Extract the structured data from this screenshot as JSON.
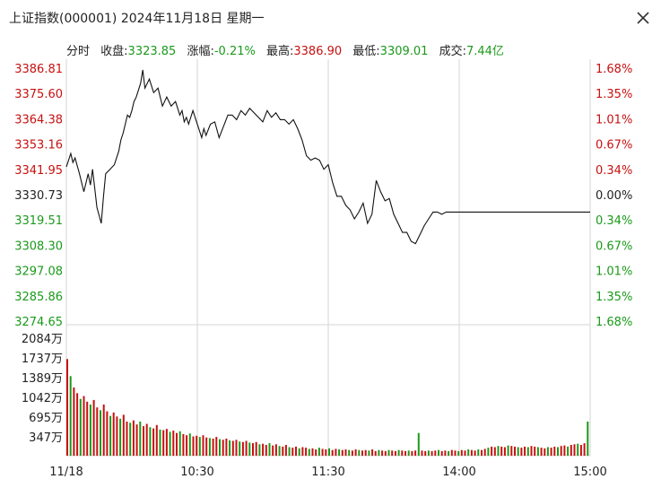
{
  "window": {
    "title": "上证指数(000001) 2024年11月18日 星期一",
    "close_icon": "close-icon"
  },
  "info_bar": {
    "mode_label": "分时",
    "close_label": "收盘:",
    "close_value": "3323.85",
    "change_label": "涨幅:",
    "change_value": "-0.21%",
    "high_label": "最高:",
    "high_value": "3386.90",
    "low_label": "最低:",
    "low_value": "3309.01",
    "turnover_label": "成交:",
    "turnover_value": "7.44亿"
  },
  "colors": {
    "up": "#c81010",
    "down": "#1a9a1a",
    "neutral": "#222222",
    "grid": "#d6d6d6",
    "line": "#111111"
  },
  "chart_data": [
    {
      "type": "line",
      "title": "",
      "price_axis_labels": [
        "3386.81",
        "3375.60",
        "3364.38",
        "3353.16",
        "3341.95",
        "3330.73",
        "3319.51",
        "3308.30",
        "3297.08",
        "3285.86",
        "3274.65"
      ],
      "percent_axis_labels": [
        "1.68%",
        "1.35%",
        "1.01%",
        "0.67%",
        "0.34%",
        "0.00%",
        "0.34%",
        "0.67%",
        "1.01%",
        "1.35%",
        "1.68%"
      ],
      "ylim": [
        3274.65,
        3386.81
      ],
      "baseline": 3330.73,
      "x_tick_labels": [
        "11/18",
        "10:30",
        "11:30",
        "14:00",
        "15:00"
      ],
      "x_ticks_minutes": [
        0,
        60,
        120,
        180,
        240
      ],
      "series": [
        {
          "x": [
            0,
            2,
            3,
            4,
            6,
            8,
            10,
            11,
            12,
            14,
            16,
            17,
            18,
            20,
            22,
            24,
            25,
            26,
            27,
            28,
            29,
            30,
            31,
            32,
            34,
            35,
            36,
            38,
            40,
            42,
            44,
            46,
            48,
            50,
            52,
            53,
            54,
            55,
            56,
            58,
            60,
            62,
            63,
            64,
            66,
            68,
            70,
            72,
            74,
            76,
            78,
            80,
            82,
            84,
            86,
            88,
            90,
            92,
            94,
            96,
            98,
            100,
            102,
            104,
            106,
            108,
            110,
            112,
            114,
            116,
            118,
            120,
            122,
            124,
            126,
            128,
            130,
            132,
            134,
            136,
            138,
            140,
            142,
            144,
            146,
            148,
            150,
            152,
            154,
            156,
            158,
            160,
            162,
            164,
            166,
            168,
            170,
            172,
            174,
            176,
            178,
            180,
            182,
            184,
            186,
            188,
            190,
            192,
            194,
            196,
            198,
            200,
            202,
            204,
            206,
            208,
            210,
            212,
            214,
            216,
            218,
            220,
            222,
            224,
            226,
            228,
            230,
            232,
            234,
            236,
            238,
            240
          ],
          "y": [
            3343,
            3349,
            3345,
            3347,
            3340,
            3332,
            3340,
            3335,
            3342,
            3325,
            3318,
            3330,
            3340,
            3342,
            3344,
            3350,
            3355,
            3358,
            3362,
            3366,
            3365,
            3368,
            3372,
            3374,
            3380,
            3386,
            3378,
            3382,
            3376,
            3378,
            3370,
            3374,
            3370,
            3372,
            3366,
            3368,
            3363,
            3365,
            3362,
            3368,
            3362,
            3356,
            3360,
            3357,
            3362,
            3363,
            3356,
            3361,
            3366,
            3366,
            3364,
            3368,
            3366,
            3369,
            3367,
            3365,
            3363,
            3368,
            3365,
            3367,
            3364,
            3364,
            3362,
            3364,
            3360,
            3355,
            3348,
            3346,
            3347,
            3346,
            3342,
            3344,
            3336,
            3330,
            3330,
            3326,
            3324,
            3320,
            3323,
            3327,
            3318,
            3322,
            3337,
            3332,
            3328,
            3329,
            3322,
            3318,
            3314,
            3314,
            3310,
            3309,
            3313,
            3317,
            3320,
            3323,
            3323,
            3322,
            3323,
            3323,
            3323,
            3323,
            3323,
            3323,
            3323,
            3323,
            3323,
            3323,
            3323,
            3323,
            3323,
            3323,
            3323,
            3323,
            3323,
            3323,
            3323,
            3323,
            3323,
            3323,
            3323,
            3323,
            3323,
            3323,
            3323,
            3323,
            3323,
            3323,
            3323,
            3323,
            3323,
            3323
          ],
          "name": ""
        }
      ]
    },
    {
      "type": "bar",
      "title": "",
      "volume_axis_labels": [
        "2084万",
        "1737万",
        "1389万",
        "1042万",
        "695万",
        "347万"
      ],
      "ylim": [
        0,
        2084
      ],
      "values_wan": [
        1700,
        1400,
        1200,
        1100,
        1000,
        1050,
        950,
        900,
        980,
        850,
        800,
        900,
        780,
        700,
        760,
        690,
        650,
        720,
        600,
        580,
        620,
        550,
        600,
        520,
        560,
        500,
        480,
        540,
        460,
        450,
        470,
        420,
        440,
        400,
        430,
        380,
        360,
        390,
        340,
        350,
        330,
        360,
        320,
        310,
        300,
        330,
        290,
        280,
        300,
        270,
        260,
        280,
        250,
        240,
        260,
        230,
        220,
        240,
        200,
        210,
        190,
        220,
        180,
        200,
        170,
        160,
        190,
        150,
        140,
        160,
        130,
        150,
        140,
        120,
        130,
        110,
        140,
        120,
        110,
        130,
        100,
        120,
        110,
        100,
        110,
        100,
        90,
        110,
        100,
        90,
        100,
        90,
        110,
        80,
        100,
        90,
        80,
        100,
        90,
        80,
        100,
        90,
        80,
        90,
        80,
        90,
        400,
        90,
        80,
        90,
        80,
        90,
        100,
        80,
        90,
        80,
        100,
        90,
        80,
        100,
        90,
        110,
        100,
        90,
        110,
        100,
        120,
        140,
        160,
        150,
        170,
        160,
        150,
        180,
        170,
        160,
        150,
        140,
        160,
        150,
        170,
        160,
        150,
        140,
        130,
        150,
        140,
        160,
        150,
        170,
        180,
        160,
        190,
        200,
        210,
        190,
        220,
        600
      ]
    }
  ]
}
